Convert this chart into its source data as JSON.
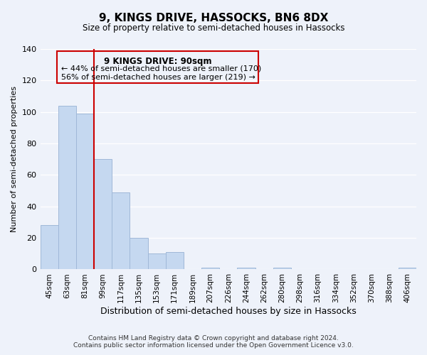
{
  "title": "9, KINGS DRIVE, HASSOCKS, BN6 8DX",
  "subtitle": "Size of property relative to semi-detached houses in Hassocks",
  "xlabel": "Distribution of semi-detached houses by size in Hassocks",
  "ylabel": "Number of semi-detached properties",
  "bar_labels": [
    "45sqm",
    "63sqm",
    "81sqm",
    "99sqm",
    "117sqm",
    "135sqm",
    "153sqm",
    "171sqm",
    "189sqm",
    "207sqm",
    "226sqm",
    "244sqm",
    "262sqm",
    "280sqm",
    "298sqm",
    "316sqm",
    "334sqm",
    "352sqm",
    "370sqm",
    "388sqm",
    "406sqm"
  ],
  "bar_values": [
    28,
    104,
    99,
    70,
    49,
    20,
    10,
    11,
    0,
    1,
    0,
    1,
    0,
    1,
    0,
    0,
    0,
    0,
    0,
    0,
    1
  ],
  "bar_color": "#c5d8f0",
  "bar_edge_color": "#a0b8d8",
  "ylim": [
    0,
    140
  ],
  "property_label": "9 KINGS DRIVE: 90sqm",
  "line_color": "#cc0000",
  "annotation_smaller": "← 44% of semi-detached houses are smaller (170)",
  "annotation_larger": "56% of semi-detached houses are larger (219) →",
  "footer1": "Contains HM Land Registry data © Crown copyright and database right 2024.",
  "footer2": "Contains public sector information licensed under the Open Government Licence v3.0.",
  "background_color": "#eef2fa",
  "grid_color": "#ffffff",
  "yticks": [
    0,
    20,
    40,
    60,
    80,
    100,
    120,
    140
  ]
}
